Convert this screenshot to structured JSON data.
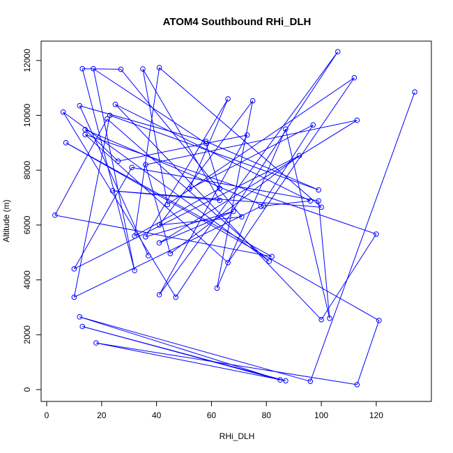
{
  "chart_data": {
    "type": "line",
    "title": "ATOM4 Southbound RHi_DLH",
    "xlabel": "RHi_DLH",
    "ylabel": "Altitude (m)",
    "xlim": [
      0,
      135
    ],
    "ylim": [
      0,
      12300
    ],
    "xticks": [
      0,
      20,
      40,
      60,
      80,
      100,
      120
    ],
    "yticks": [
      0,
      2000,
      4000,
      6000,
      8000,
      10000,
      12000
    ],
    "grid": false,
    "legend": "none",
    "series": [
      {
        "color": "#0000ff",
        "marker": "open-circle",
        "points": [
          [
            134,
            10850
          ],
          [
            96,
            300
          ],
          [
            12,
            2650
          ],
          [
            85,
            350
          ],
          [
            13,
            2300
          ],
          [
            87,
            320
          ],
          [
            18,
            1700
          ],
          [
            113,
            180
          ],
          [
            121,
            2520
          ],
          [
            7,
            9000
          ],
          [
            82,
            4850
          ],
          [
            3,
            6360
          ],
          [
            22,
            9870
          ],
          [
            81,
            4680
          ],
          [
            6,
            10120
          ],
          [
            47,
            3370
          ],
          [
            106,
            12320
          ],
          [
            41,
            3460
          ],
          [
            73,
            9280
          ],
          [
            26,
            8330
          ],
          [
            14,
            9480
          ],
          [
            79,
            6700
          ],
          [
            96,
            6880
          ],
          [
            25,
            10400
          ],
          [
            100,
            2550
          ],
          [
            120,
            5670
          ],
          [
            14,
            9300
          ],
          [
            66,
            4630
          ],
          [
            112,
            11370
          ],
          [
            44,
            6750
          ],
          [
            35,
            11690
          ],
          [
            63,
            6900
          ],
          [
            24,
            7250
          ],
          [
            100,
            6650
          ],
          [
            41,
            11740
          ],
          [
            32,
            5600
          ],
          [
            63,
            7330
          ],
          [
            58,
            8980
          ],
          [
            17,
            11700
          ],
          [
            32,
            4340
          ],
          [
            13,
            11700
          ],
          [
            27,
            11680
          ],
          [
            71,
            6300
          ],
          [
            41,
            6000
          ],
          [
            75,
            10530
          ],
          [
            62,
            3700
          ],
          [
            87,
            9500
          ],
          [
            103,
            2600
          ],
          [
            99,
            6880
          ],
          [
            31,
            8100
          ],
          [
            10,
            4400
          ],
          [
            92,
            8530
          ],
          [
            45,
            4960
          ],
          [
            36,
            8200
          ],
          [
            113,
            9820
          ],
          [
            41,
            5350
          ],
          [
            68,
            6500
          ],
          [
            36,
            5570
          ],
          [
            66,
            10600
          ],
          [
            52,
            7320
          ],
          [
            97,
            9650
          ],
          [
            78,
            6680
          ],
          [
            10,
            3370
          ],
          [
            23,
            10000
          ],
          [
            99,
            7280
          ],
          [
            58,
            9050
          ],
          [
            12,
            10350
          ],
          [
            37,
            4880
          ]
        ]
      }
    ]
  }
}
